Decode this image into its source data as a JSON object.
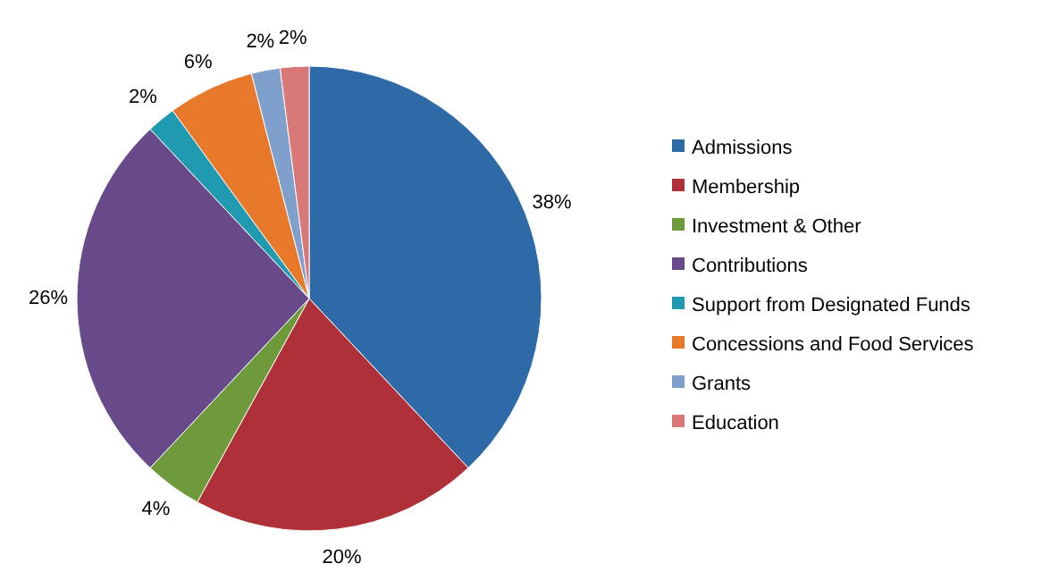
{
  "chart_data": {
    "type": "pie",
    "categories": [
      "Admissions",
      "Membership",
      "Investment & Other",
      "Contributions",
      "Support from Designated Funds",
      "Concessions and Food Services",
      "Grants",
      "Education"
    ],
    "values": [
      38,
      20,
      4,
      26,
      2,
      6,
      2,
      2
    ],
    "value_labels": [
      "38%",
      "20%",
      "4%",
      "26%",
      "2%",
      "6%",
      "2%",
      "2%"
    ],
    "colors": [
      "#2e6aa8",
      "#b0303a",
      "#6e9a3c",
      "#684a8a",
      "#1f9ab0",
      "#e8782a",
      "#7fa0cc",
      "#d87878"
    ],
    "legend": "right"
  }
}
